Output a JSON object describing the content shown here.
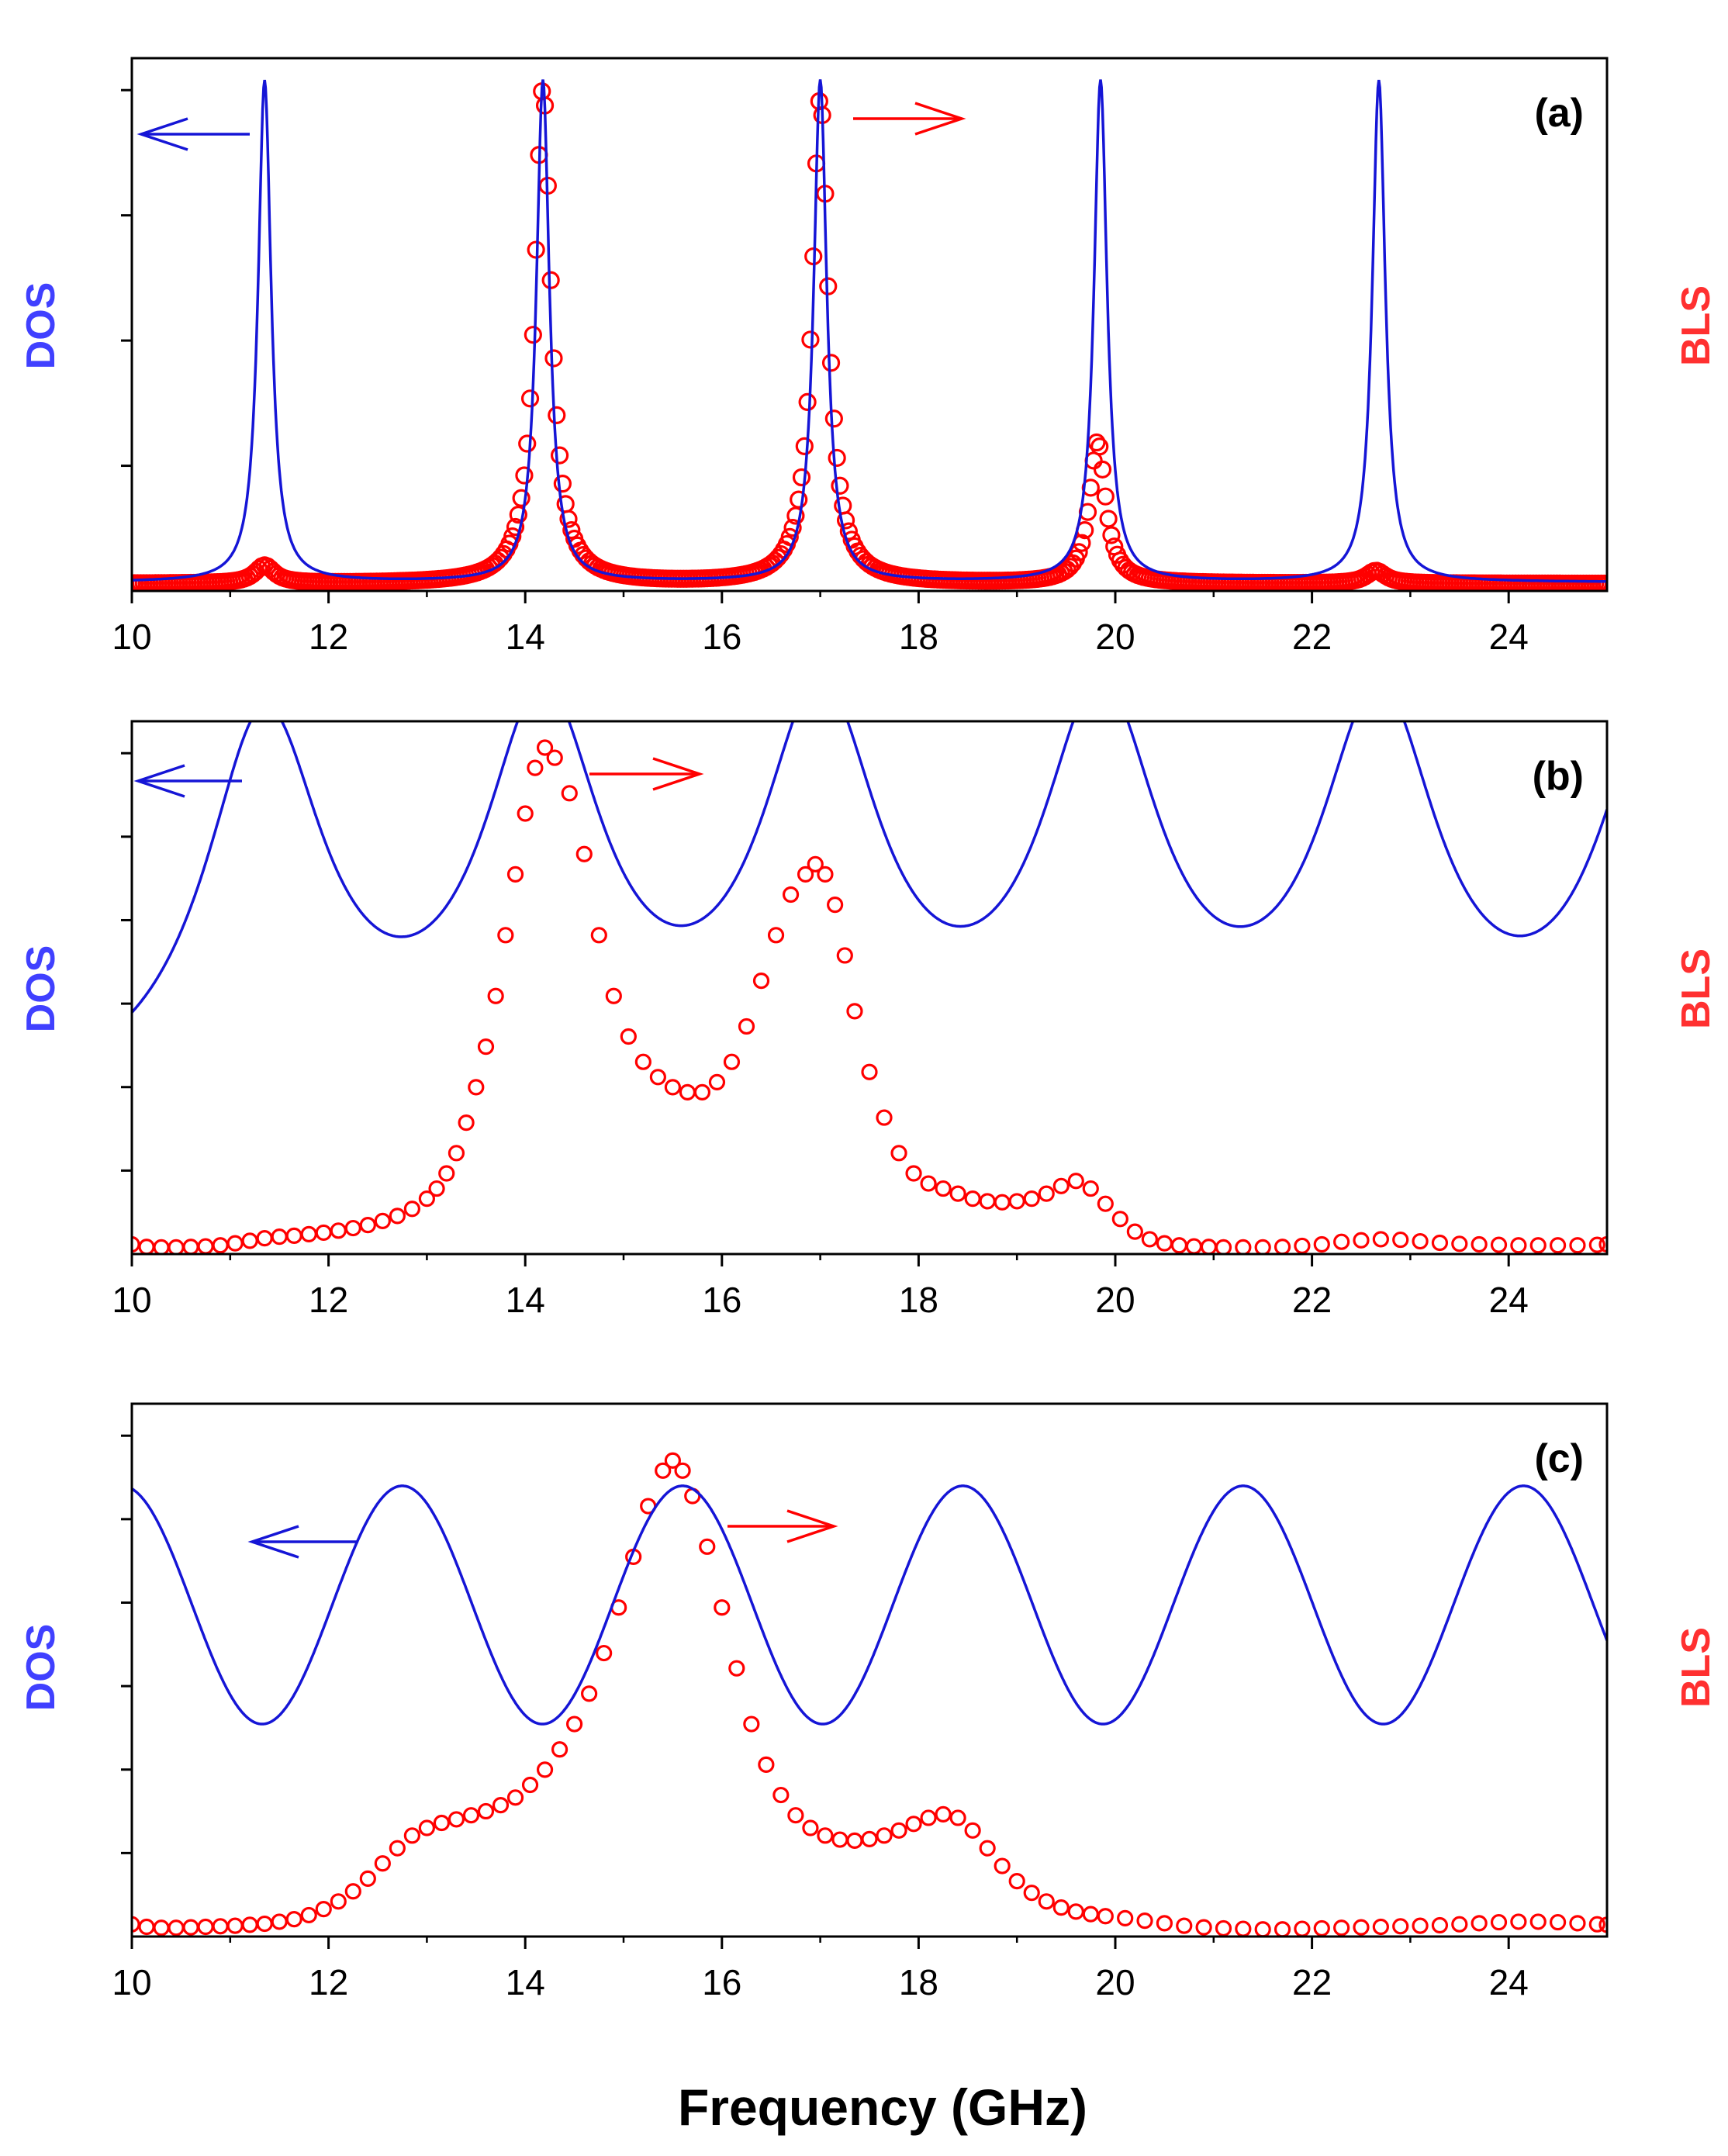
{
  "figure": {
    "xlabel": "Frequency (GHz)",
    "colors": {
      "dos": "#1515d6",
      "bls": "#ff0000",
      "dos_label": "#4040ff",
      "bls_label": "#ff3030",
      "axis": "#000000"
    }
  },
  "chart_data": [
    {
      "type": "line",
      "panel_label": "(a)",
      "left_ylabel": "DOS",
      "right_ylabel": "BLS",
      "xlim": [
        10,
        25
      ],
      "xticks": [
        10,
        12,
        14,
        16,
        18,
        20,
        22,
        24
      ],
      "left_yticks": 4,
      "series": [
        {
          "name": "DOS",
          "style": "line",
          "model": "lorentzian_peaks",
          "baseline": 0.008,
          "peaks": [
            {
              "center": 11.35,
              "width": 0.08,
              "height": 0.99
            },
            {
              "center": 14.18,
              "width": 0.08,
              "height": 0.99
            },
            {
              "center": 17.0,
              "width": 0.08,
              "height": 0.99
            },
            {
              "center": 19.85,
              "width": 0.08,
              "height": 0.99
            },
            {
              "center": 22.68,
              "width": 0.08,
              "height": 0.99
            }
          ]
        },
        {
          "name": "BLS",
          "style": "circles",
          "model": "lorentzian_peaks",
          "step": 0.03,
          "baseline": 0.005,
          "peaks": [
            {
              "center": 11.35,
              "width": 0.12,
              "height": 0.035
            },
            {
              "center": 14.18,
              "width": 0.1,
              "height": 0.98
            },
            {
              "center": 17.0,
              "width": 0.1,
              "height": 0.96
            },
            {
              "center": 19.82,
              "width": 0.1,
              "height": 0.28
            },
            {
              "center": 22.65,
              "width": 0.12,
              "height": 0.025
            }
          ]
        }
      ],
      "annotations": [
        {
          "text": "←",
          "meaning": "DOS on left axis",
          "x": 10.6
        },
        {
          "text": "→",
          "meaning": "BLS on right axis",
          "x": 18.5
        }
      ]
    },
    {
      "type": "line",
      "panel_label": "(b)",
      "left_ylabel": "DOS",
      "right_ylabel": "BLS",
      "xlim": [
        10,
        25
      ],
      "xticks": [
        10,
        12,
        14,
        16,
        18,
        20,
        22,
        24
      ],
      "left_yticks": 6,
      "series": [
        {
          "name": "DOS",
          "style": "line",
          "model": "lorentzian_peaks",
          "baseline": 0.0,
          "offset": 0.25,
          "peaks": [
            {
              "center": 11.35,
              "width": 0.75,
              "height": 0.75
            },
            {
              "center": 14.18,
              "width": 0.75,
              "height": 0.75
            },
            {
              "center": 17.0,
              "width": 0.75,
              "height": 0.75
            },
            {
              "center": 19.85,
              "width": 0.75,
              "height": 0.75
            },
            {
              "center": 22.68,
              "width": 0.75,
              "height": 0.75
            },
            {
              "center": 25.5,
              "width": 0.75,
              "height": 0.75
            }
          ]
        },
        {
          "name": "BLS",
          "style": "circles",
          "x": [
            10.0,
            10.15,
            10.3,
            10.45,
            10.6,
            10.75,
            10.9,
            11.05,
            11.2,
            11.35,
            11.5,
            11.65,
            11.8,
            11.95,
            12.1,
            12.25,
            12.4,
            12.55,
            12.7,
            12.85,
            13.0,
            13.1,
            13.2,
            13.3,
            13.4,
            13.5,
            13.6,
            13.7,
            13.8,
            13.9,
            14.0,
            14.1,
            14.2,
            14.3,
            14.45,
            14.6,
            14.75,
            14.9,
            15.05,
            15.2,
            15.35,
            15.5,
            15.65,
            15.8,
            15.95,
            16.1,
            16.25,
            16.4,
            16.55,
            16.7,
            16.85,
            16.95,
            17.05,
            17.15,
            17.25,
            17.35,
            17.5,
            17.65,
            17.8,
            17.95,
            18.1,
            18.25,
            18.4,
            18.55,
            18.7,
            18.85,
            19.0,
            19.15,
            19.3,
            19.45,
            19.6,
            19.75,
            19.9,
            20.05,
            20.2,
            20.35,
            20.5,
            20.65,
            20.8,
            20.95,
            21.1,
            21.3,
            21.5,
            21.7,
            21.9,
            22.1,
            22.3,
            22.5,
            22.7,
            22.9,
            23.1,
            23.3,
            23.5,
            23.7,
            23.9,
            24.1,
            24.3,
            24.5,
            24.7,
            24.9,
            25.0
          ],
          "values": [
            0.01,
            0.005,
            0.004,
            0.004,
            0.005,
            0.006,
            0.008,
            0.012,
            0.017,
            0.022,
            0.025,
            0.027,
            0.03,
            0.033,
            0.037,
            0.042,
            0.048,
            0.056,
            0.066,
            0.08,
            0.1,
            0.12,
            0.15,
            0.19,
            0.25,
            0.32,
            0.4,
            0.5,
            0.62,
            0.74,
            0.86,
            0.95,
            0.99,
            0.97,
            0.9,
            0.78,
            0.62,
            0.5,
            0.42,
            0.37,
            0.34,
            0.32,
            0.31,
            0.31,
            0.33,
            0.37,
            0.44,
            0.53,
            0.62,
            0.7,
            0.74,
            0.76,
            0.74,
            0.68,
            0.58,
            0.47,
            0.35,
            0.26,
            0.19,
            0.15,
            0.13,
            0.12,
            0.11,
            0.1,
            0.095,
            0.093,
            0.095,
            0.1,
            0.11,
            0.125,
            0.135,
            0.12,
            0.09,
            0.06,
            0.035,
            0.02,
            0.012,
            0.008,
            0.006,
            0.005,
            0.004,
            0.004,
            0.004,
            0.005,
            0.007,
            0.01,
            0.015,
            0.018,
            0.02,
            0.019,
            0.016,
            0.013,
            0.011,
            0.01,
            0.009,
            0.008,
            0.008,
            0.008,
            0.008,
            0.009,
            0.01
          ]
        }
      ],
      "annotations": [
        {
          "text": "←",
          "meaning": "DOS on left axis",
          "x": 10.6
        },
        {
          "text": "→",
          "meaning": "BLS on right axis",
          "x": 15.8
        }
      ]
    },
    {
      "type": "line",
      "panel_label": "(c)",
      "left_ylabel": "DOS",
      "right_ylabel": "BLS",
      "xlim": [
        10,
        25
      ],
      "xticks": [
        10,
        12,
        14,
        16,
        18,
        20,
        22,
        24
      ],
      "left_yticks": 6,
      "series": [
        {
          "name": "DOS",
          "style": "line",
          "model": "cosine",
          "period": 2.85,
          "phase_center": 12.75,
          "min": 0.41,
          "max": 0.88
        },
        {
          "name": "BLS",
          "style": "circles",
          "x": [
            10.0,
            10.15,
            10.3,
            10.45,
            10.6,
            10.75,
            10.9,
            11.05,
            11.2,
            11.35,
            11.5,
            11.65,
            11.8,
            11.95,
            12.1,
            12.25,
            12.4,
            12.55,
            12.7,
            12.85,
            13.0,
            13.15,
            13.3,
            13.45,
            13.6,
            13.75,
            13.9,
            14.05,
            14.2,
            14.35,
            14.5,
            14.65,
            14.8,
            14.95,
            15.1,
            15.25,
            15.4,
            15.5,
            15.6,
            15.7,
            15.85,
            16.0,
            16.15,
            16.3,
            16.45,
            16.6,
            16.75,
            16.9,
            17.05,
            17.2,
            17.35,
            17.5,
            17.65,
            17.8,
            17.95,
            18.1,
            18.25,
            18.4,
            18.55,
            18.7,
            18.85,
            19.0,
            19.15,
            19.3,
            19.45,
            19.6,
            19.75,
            19.9,
            20.1,
            20.3,
            20.5,
            20.7,
            20.9,
            21.1,
            21.3,
            21.5,
            21.7,
            21.9,
            22.1,
            22.3,
            22.5,
            22.7,
            22.9,
            23.1,
            23.3,
            23.5,
            23.7,
            23.9,
            24.1,
            24.3,
            24.5,
            24.7,
            24.9,
            25.0
          ],
          "values": [
            0.015,
            0.01,
            0.008,
            0.008,
            0.009,
            0.01,
            0.011,
            0.012,
            0.014,
            0.016,
            0.02,
            0.025,
            0.033,
            0.045,
            0.06,
            0.08,
            0.105,
            0.135,
            0.165,
            0.19,
            0.205,
            0.215,
            0.222,
            0.23,
            0.238,
            0.25,
            0.265,
            0.29,
            0.32,
            0.36,
            0.41,
            0.47,
            0.55,
            0.64,
            0.74,
            0.84,
            0.91,
            0.93,
            0.91,
            0.86,
            0.76,
            0.64,
            0.52,
            0.41,
            0.33,
            0.27,
            0.23,
            0.205,
            0.19,
            0.182,
            0.18,
            0.183,
            0.19,
            0.2,
            0.213,
            0.225,
            0.232,
            0.225,
            0.2,
            0.165,
            0.13,
            0.1,
            0.077,
            0.06,
            0.048,
            0.04,
            0.035,
            0.031,
            0.027,
            0.022,
            0.017,
            0.012,
            0.009,
            0.007,
            0.006,
            0.005,
            0.005,
            0.006,
            0.007,
            0.008,
            0.009,
            0.01,
            0.011,
            0.012,
            0.013,
            0.015,
            0.017,
            0.019,
            0.02,
            0.02,
            0.019,
            0.017,
            0.015,
            0.014
          ]
        }
      ],
      "annotations": [
        {
          "text": "←",
          "meaning": "DOS on left axis",
          "x": 11.2
        },
        {
          "text": "→",
          "meaning": "BLS on right axis",
          "x": 16.5
        }
      ]
    }
  ]
}
